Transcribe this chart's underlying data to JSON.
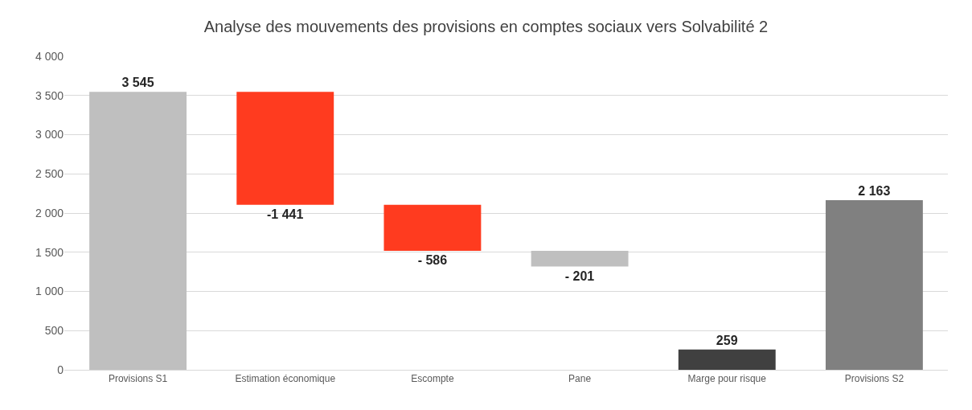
{
  "chart_data": {
    "type": "bar",
    "title": "Analyse des mouvements des provisions en comptes sociaux vers Solvabilité 2",
    "categories": [
      "Provisions S1",
      "Estimation économique",
      "Escompte",
      "Pane",
      "Marge pour risque",
      "Provisions S2"
    ],
    "values": [
      3545,
      -1441,
      -586,
      -201,
      259,
      2163
    ],
    "base": [
      0,
      3545,
      2104,
      1518,
      0,
      0
    ],
    "colors": [
      "#bfbfbf",
      "#ff3b1f",
      "#ff3b1f",
      "#bfbfbf",
      "#404040",
      "#808080"
    ],
    "value_labels": [
      "3 545",
      "-1 441",
      "- 586",
      "- 201",
      "259",
      "2 163"
    ],
    "ylim": [
      0,
      4000
    ],
    "yticks": [
      0,
      500,
      {
        "value": 1000,
        "label": "1 000"
      },
      {
        "value": 1500,
        "label": "1 500"
      },
      {
        "value": 2000,
        "label": "2 000"
      },
      {
        "value": 2500,
        "label": "2 500"
      },
      {
        "value": 3000,
        "label": "3 000"
      },
      {
        "value": 3500,
        "label": "3 500"
      },
      {
        "value": 4000,
        "label": "4 000"
      }
    ],
    "grid": "y"
  }
}
